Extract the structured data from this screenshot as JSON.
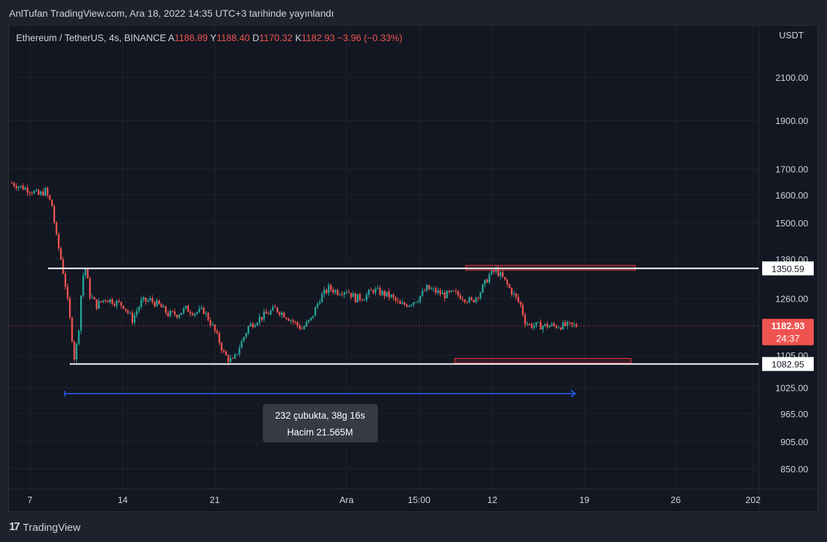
{
  "header": {
    "published": "AnlTufan TradingView.com, Ara 18, 2022 14:35 UTC+3 tarihinde yayınlandı"
  },
  "legend": {
    "symbol": "Ethereum / TetherUS, 4s, BINANCE",
    "a_label": "A",
    "a_value": "1186.89",
    "y_label": "Y",
    "y_value": "1188.40",
    "d_label": "D",
    "d_value": "1170.32",
    "k_label": "K",
    "k_value": "1182.93",
    "change": "−3.96 (−0.33%)"
  },
  "price_axis": {
    "currency": "USDT"
  },
  "measure": {
    "line1": "232 çubukta, 38g 16s",
    "line2": "Hacim 21.565M"
  },
  "footer": {
    "brand": "TradingView",
    "logo_glyph": "17"
  },
  "colors": {
    "up": "#26a69a",
    "down": "#ef5350",
    "bg": "#131722",
    "grid": "#1f2330",
    "support_resistance": "#ffffff",
    "measure": "#2962ff"
  },
  "chart_data": {
    "type": "candlestick",
    "symbol": "ETH/USDT",
    "interval": "4s",
    "y_axis": {
      "scale": "log",
      "ticks": [
        "2100.00",
        "1900.00",
        "1700.00",
        "1600.00",
        "1500.00",
        "1380.00",
        "1260.00",
        "1105.00",
        "1025.00",
        "965.00",
        "905.00",
        "850.00"
      ],
      "tick_values": [
        2100,
        1900,
        1700,
        1600,
        1500,
        1380,
        1260,
        1105,
        1025,
        965,
        905,
        850
      ]
    },
    "x_axis": {
      "ticks": [
        "7",
        "14",
        "21",
        "Ara",
        "15:00",
        "12",
        "19",
        "26",
        "202"
      ]
    },
    "current_price": {
      "label": "1182.93",
      "countdown": "24:37",
      "value": 1182.93
    },
    "levels": [
      {
        "name": "resistance",
        "value": 1350.59,
        "label": "1350.59"
      },
      {
        "name": "support",
        "value": 1082.95,
        "label": "1082.95"
      }
    ],
    "zones": [
      {
        "name": "upper-zone",
        "low": 1345,
        "high": 1360
      },
      {
        "name": "lower-zone",
        "low": 1085,
        "high": 1097
      }
    ],
    "price_path": [
      [
        0,
        1645
      ],
      [
        4,
        1630
      ],
      [
        8,
        1620
      ],
      [
        12,
        1600
      ],
      [
        15,
        1615
      ],
      [
        18,
        1560
      ],
      [
        20,
        1450
      ],
      [
        22,
        1380
      ],
      [
        24,
        1300
      ],
      [
        26,
        1200
      ],
      [
        27,
        1150
      ],
      [
        28,
        1100
      ],
      [
        29,
        1130
      ],
      [
        30,
        1180
      ],
      [
        31,
        1270
      ],
      [
        32,
        1330
      ],
      [
        33,
        1350
      ],
      [
        35,
        1270
      ],
      [
        38,
        1240
      ],
      [
        42,
        1260
      ],
      [
        46,
        1250
      ],
      [
        50,
        1240
      ],
      [
        54,
        1200
      ],
      [
        58,
        1250
      ],
      [
        62,
        1255
      ],
      [
        66,
        1240
      ],
      [
        70,
        1215
      ],
      [
        74,
        1215
      ],
      [
        78,
        1230
      ],
      [
        82,
        1220
      ],
      [
        86,
        1225
      ],
      [
        90,
        1180
      ],
      [
        93,
        1140
      ],
      [
        95,
        1110
      ],
      [
        97,
        1095
      ],
      [
        99,
        1090
      ],
      [
        100,
        1100
      ],
      [
        103,
        1140
      ],
      [
        106,
        1180
      ],
      [
        110,
        1200
      ],
      [
        114,
        1215
      ],
      [
        118,
        1230
      ],
      [
        122,
        1215
      ],
      [
        126,
        1195
      ],
      [
        130,
        1175
      ],
      [
        134,
        1200
      ],
      [
        138,
        1260
      ],
      [
        142,
        1290
      ],
      [
        146,
        1280
      ],
      [
        150,
        1285
      ],
      [
        154,
        1260
      ],
      [
        158,
        1265
      ],
      [
        162,
        1285
      ],
      [
        166,
        1275
      ],
      [
        170,
        1265
      ],
      [
        174,
        1240
      ],
      [
        178,
        1245
      ],
      [
        182,
        1260
      ],
      [
        186,
        1290
      ],
      [
        190,
        1280
      ],
      [
        194,
        1270
      ],
      [
        198,
        1275
      ],
      [
        202,
        1265
      ],
      [
        206,
        1250
      ],
      [
        210,
        1280
      ],
      [
        214,
        1330
      ],
      [
        217,
        1345
      ],
      [
        220,
        1320
      ],
      [
        224,
        1280
      ],
      [
        228,
        1240
      ],
      [
        230,
        1195
      ],
      [
        232,
        1185
      ],
      [
        236,
        1183
      ],
      [
        240,
        1183
      ]
    ]
  }
}
